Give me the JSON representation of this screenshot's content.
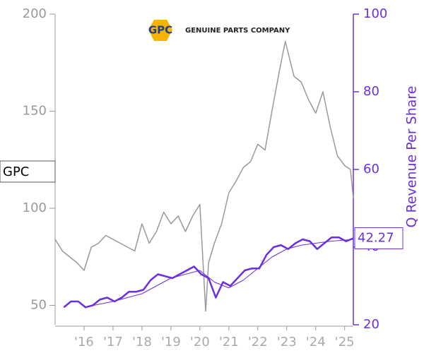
{
  "chart_data": {
    "type": "line",
    "logo": {
      "mark": "GPC",
      "text": "GENUINE PARTS COMPANY"
    },
    "annotation": "GPC",
    "y2_label": "Q Revenue Per Share",
    "xlim": [
      2015.0,
      2025.3
    ],
    "xticks": [
      {
        "value": 2016,
        "label": "'16"
      },
      {
        "value": 2017,
        "label": "'17"
      },
      {
        "value": 2018,
        "label": "'18"
      },
      {
        "value": 2019,
        "label": "'19"
      },
      {
        "value": 2020,
        "label": "'20"
      },
      {
        "value": 2021,
        "label": "'21"
      },
      {
        "value": 2022,
        "label": "'22"
      },
      {
        "value": 2023,
        "label": "'23"
      },
      {
        "value": 2024,
        "label": "'24"
      },
      {
        "value": 2025,
        "label": "'25"
      }
    ],
    "ylim": [
      40,
      200
    ],
    "yticks": [
      50,
      100,
      150,
      200
    ],
    "y2lim": [
      20,
      100
    ],
    "y2ticks": [
      20,
      40,
      60,
      80,
      100
    ],
    "series": [
      {
        "color": "#999999",
        "width": 1.5,
        "axis": "y",
        "x": [
          2015.0,
          2015.25,
          2015.5,
          2015.75,
          2016.0,
          2016.25,
          2016.5,
          2016.75,
          2017.0,
          2017.25,
          2017.5,
          2017.75,
          2018.0,
          2018.25,
          2018.5,
          2018.75,
          2019.0,
          2019.25,
          2019.5,
          2019.75,
          2020.0,
          2020.2,
          2020.3,
          2020.5,
          2020.75,
          2021.0,
          2021.25,
          2021.5,
          2021.75,
          2022.0,
          2022.25,
          2022.5,
          2022.75,
          2022.95,
          2023.25,
          2023.5,
          2023.75,
          2024.0,
          2024.25,
          2024.5,
          2024.75,
          2025.0,
          2025.2,
          2025.3
        ],
        "values": [
          84,
          78,
          75,
          72,
          68,
          80,
          82,
          86,
          84,
          82,
          80,
          78,
          92,
          82,
          88,
          98,
          92,
          96,
          88,
          96,
          102,
          47,
          72,
          82,
          92,
          108,
          114,
          121,
          124,
          133,
          130,
          151,
          171,
          186,
          168,
          165,
          156,
          149,
          160,
          142,
          127,
          122,
          120,
          105
        ]
      },
      {
        "color": "#6a2fe0",
        "width": 2.5,
        "axis": "y2",
        "x": [
          2015.3,
          2015.55,
          2015.8,
          2016.05,
          2016.3,
          2016.55,
          2016.8,
          2017.05,
          2017.3,
          2017.55,
          2017.8,
          2018.05,
          2018.3,
          2018.55,
          2018.8,
          2019.05,
          2019.3,
          2019.55,
          2019.8,
          2020.05,
          2020.3,
          2020.55,
          2020.8,
          2021.05,
          2021.3,
          2021.55,
          2021.8,
          2022.05,
          2022.3,
          2022.55,
          2022.8,
          2023.05,
          2023.3,
          2023.55,
          2023.8,
          2024.05,
          2024.3,
          2024.55,
          2024.8,
          2025.05,
          2025.3
        ],
        "values": [
          24.5,
          26,
          26,
          24.5,
          25,
          26.5,
          27,
          26,
          27,
          28.5,
          28.5,
          29,
          31.5,
          33,
          32.5,
          32,
          33,
          34,
          35,
          33,
          32,
          27,
          31,
          30,
          32,
          34,
          34.5,
          34.5,
          38,
          40,
          40.5,
          39.5,
          41,
          42,
          41.5,
          39.5,
          41,
          42.5,
          42.5,
          41.5,
          42.27
        ]
      },
      {
        "color": "#6a2fe0",
        "width": 1,
        "axis": "y2",
        "x": [
          2016.0,
          2017.0,
          2018.0,
          2019.0,
          2020.0,
          2020.5,
          2021.0,
          2021.5,
          2022.0,
          2022.5,
          2023.0,
          2023.5,
          2024.0,
          2024.5,
          2025.3
        ],
        "values": [
          24.5,
          26,
          28,
          32,
          34,
          31,
          29.5,
          31.5,
          34.5,
          37.5,
          39.5,
          40.5,
          41,
          41.5,
          42
        ]
      }
    ]
  }
}
